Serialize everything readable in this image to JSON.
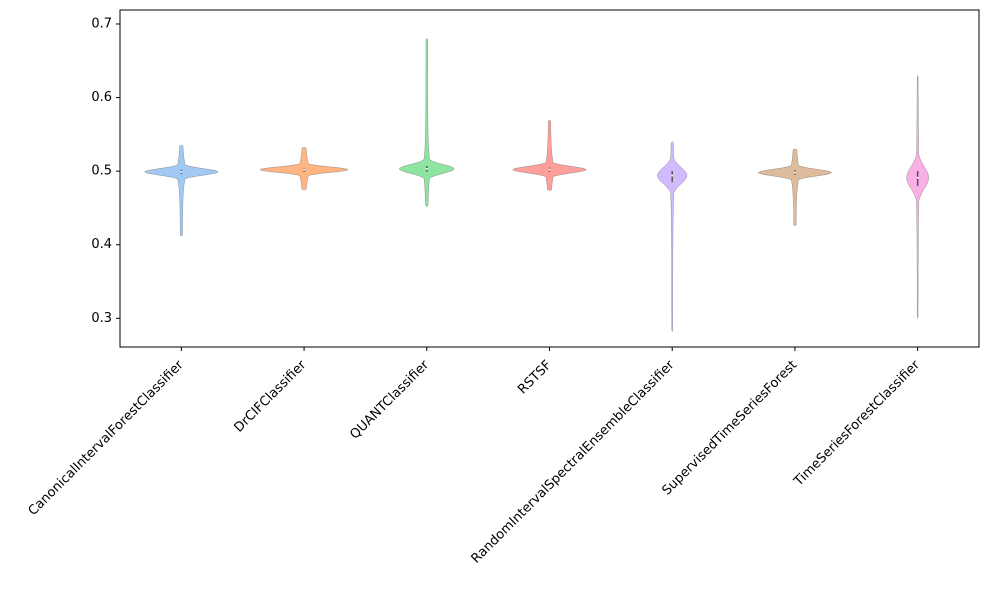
{
  "chart_data": {
    "type": "violin",
    "categories": [
      "CanonicalIntervalForestClassifier",
      "DrCIFClassifier",
      "QUANTClassifier",
      "RSTSF",
      "RandomIntervalSpectralEnsembleClassifier",
      "SupervisedTimeSeriesForest",
      "TimeSeriesForestClassifier"
    ],
    "min": [
      0.412,
      0.475,
      0.452,
      0.474,
      0.282,
      0.426,
      0.3
    ],
    "q1": [
      0.496,
      0.499,
      0.499,
      0.499,
      0.485,
      0.495,
      0.48
    ],
    "median": [
      0.499,
      0.502,
      0.503,
      0.502,
      0.494,
      0.498,
      0.491
    ],
    "q3": [
      0.502,
      0.504,
      0.507,
      0.505,
      0.5,
      0.501,
      0.5
    ],
    "max": [
      0.535,
      0.532,
      0.68,
      0.569,
      0.54,
      0.53,
      0.63
    ],
    "colors": [
      "#a1c9f4",
      "#ffb482",
      "#8de5a1",
      "#ff9f9b",
      "#d0bbff",
      "#debb9b",
      "#fab0e4"
    ],
    "ylim": [
      0.261,
      0.719
    ],
    "yticks": [
      0.3,
      0.4,
      0.5,
      0.6,
      0.7
    ],
    "grid": false
  }
}
